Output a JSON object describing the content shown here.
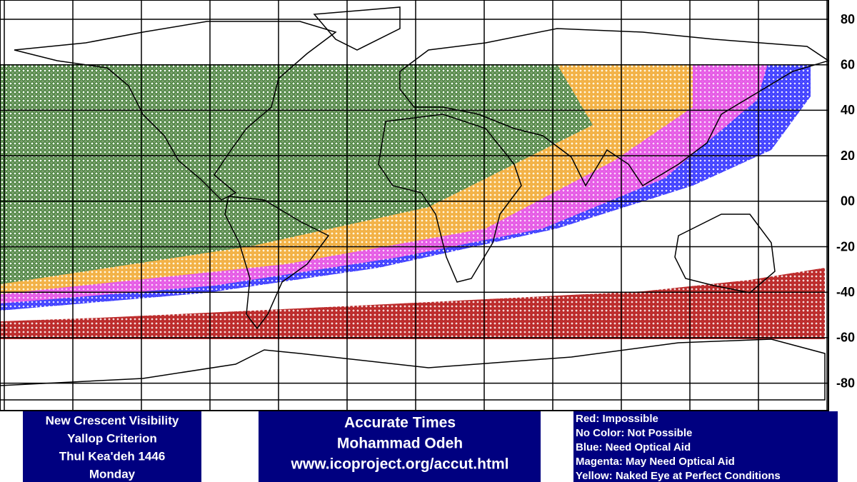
{
  "map": {
    "latitude_labels": [
      "80",
      "60",
      "40",
      "20",
      "00",
      "-20",
      "-40",
      "-60",
      "-80"
    ]
  },
  "info_box": {
    "lines": [
      "New Crescent Visibility",
      "Yallop Criterion",
      "Thul Kea'deh 1446",
      "Monday"
    ]
  },
  "credit_box": {
    "lines": [
      "Accurate Times",
      "Mohammad Odeh",
      "www.icoproject.org/accut.html"
    ]
  },
  "legend": {
    "lines": [
      "Red: Impossible",
      "No Color: Not Possible",
      "Blue: Need Optical Aid",
      "Magenta: May Need Optical Aid",
      "Yellow: Naked Eye at Perfect Conditions"
    ]
  }
}
